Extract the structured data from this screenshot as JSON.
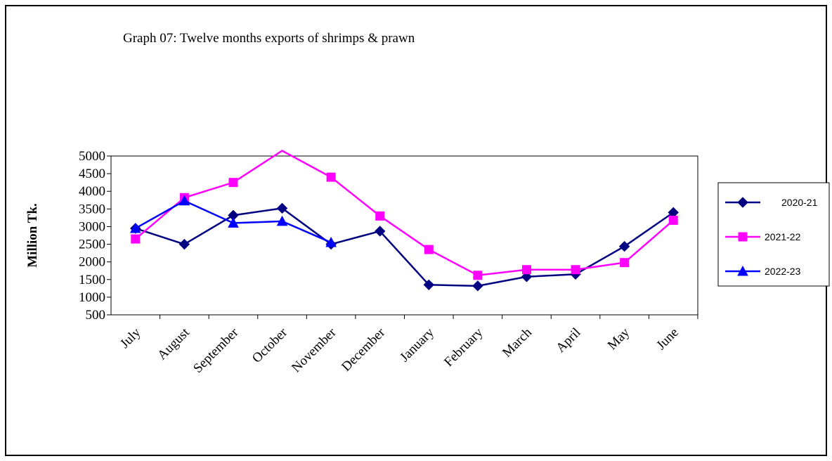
{
  "chart_data": {
    "type": "line",
    "title": "Graph 07: Twelve months exports of shrimps & prawn",
    "y_label": "Million Tk.",
    "categories": [
      "July",
      "August",
      "September",
      "October",
      "November",
      "December",
      "January",
      "February",
      "March",
      "April",
      "May",
      "June"
    ],
    "series": [
      {
        "name": "2020-21",
        "color": "#000080",
        "marker": "diamond",
        "values": [
          2950,
          2500,
          3320,
          3520,
          2500,
          2870,
          1350,
          1320,
          1580,
          1650,
          2440,
          3400
        ]
      },
      {
        "name": "2021-22",
        "color": "#ff00ff",
        "marker": "square",
        "values": [
          2650,
          3820,
          4250,
          5150,
          4400,
          3300,
          2350,
          1620,
          1780,
          1780,
          1980,
          3180
        ]
      },
      {
        "name": "2022-23",
        "color": "#0000ff",
        "marker": "triangle",
        "values": [
          2950,
          3730,
          3100,
          3150,
          2550,
          null,
          null,
          null,
          null,
          null,
          null,
          null
        ]
      }
    ],
    "ylim": [
      500,
      5000
    ],
    "yticks": [
      500,
      1000,
      1500,
      2000,
      2500,
      3000,
      3500,
      4000,
      4500,
      5000
    ],
    "legend": "right"
  }
}
